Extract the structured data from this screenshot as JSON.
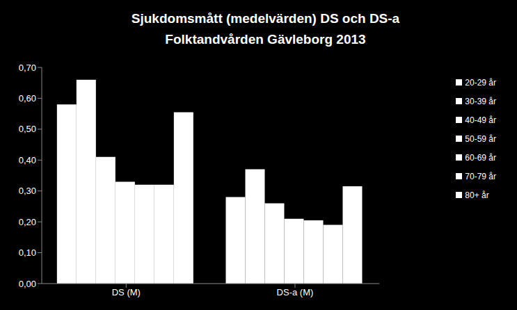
{
  "chart_data": {
    "type": "bar",
    "title": "Sjukdomsmått (medelvärden) DS och DS-a\nFolktandvården Gävleborg 2013",
    "categories": [
      "DS (M)",
      "DS-a (M)"
    ],
    "series": [
      {
        "name": "20-29 år",
        "color": "#ffffff",
        "values": [
          0.58,
          0.28
        ]
      },
      {
        "name": "30-39 år",
        "color": "#ffffff",
        "values": [
          0.66,
          0.37
        ]
      },
      {
        "name": "40-49 år",
        "color": "#ffffff",
        "values": [
          0.41,
          0.26
        ]
      },
      {
        "name": "50-59 år",
        "color": "#ffffff",
        "values": [
          0.33,
          0.21
        ]
      },
      {
        "name": "60-69 år",
        "color": "#ffffff",
        "values": [
          0.32,
          0.205
        ]
      },
      {
        "name": "70-79 år",
        "color": "#ffffff",
        "values": [
          0.32,
          0.19
        ]
      },
      {
        "name": "80+ år",
        "color": "#ffffff",
        "values": [
          0.555,
          0.315
        ]
      }
    ],
    "ylim": [
      0,
      0.7
    ],
    "yticks": [
      {
        "value": 0,
        "label": "0,00"
      },
      {
        "value": 0.1,
        "label": "0,10"
      },
      {
        "value": 0.2,
        "label": "0,20"
      },
      {
        "value": 0.3,
        "label": "0,30"
      },
      {
        "value": 0.4,
        "label": "0,40"
      },
      {
        "value": 0.5,
        "label": "0,50"
      },
      {
        "value": 0.6,
        "label": "0,60"
      },
      {
        "value": 0.7,
        "label": "0,70"
      }
    ],
    "grid": false,
    "legend": "right"
  }
}
